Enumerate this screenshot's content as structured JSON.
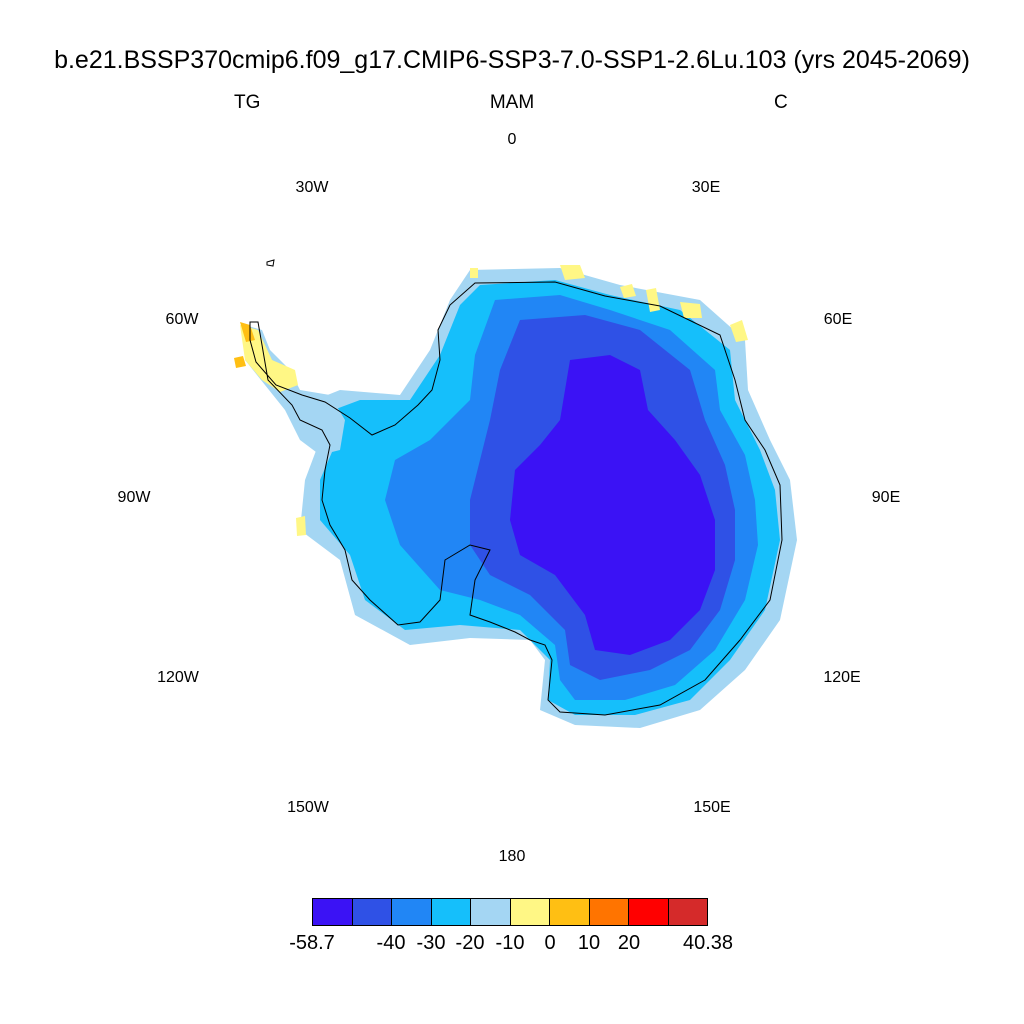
{
  "map": {
    "title": "b.e21.BSSP370cmip6.f09_g17.CMIP6-SSP3-7.0-SSP1-2.6Lu.103 (yrs 2045-2069)",
    "subtitle_left": "TG",
    "subtitle_center": "MAM",
    "subtitle_right": "C",
    "projection": "south-polar-stereographic",
    "region": "Antarctica",
    "longitude_labels": [
      "0",
      "30E",
      "60E",
      "90E",
      "120E",
      "150E",
      "180",
      "150W",
      "120W",
      "90W",
      "60W",
      "30W"
    ]
  },
  "colorbar": {
    "colors": [
      "#3b12f5",
      "#2f51e6",
      "#2186f5",
      "#15bffb",
      "#a4d6f3",
      "#fff785",
      "#ffbf13",
      "#ff7400",
      "#ff0000",
      "#d52a2a"
    ],
    "labels": [
      "-58.7",
      "-40",
      "-30",
      "-20",
      "-10",
      "0",
      "10",
      "20",
      "40.38"
    ]
  }
}
